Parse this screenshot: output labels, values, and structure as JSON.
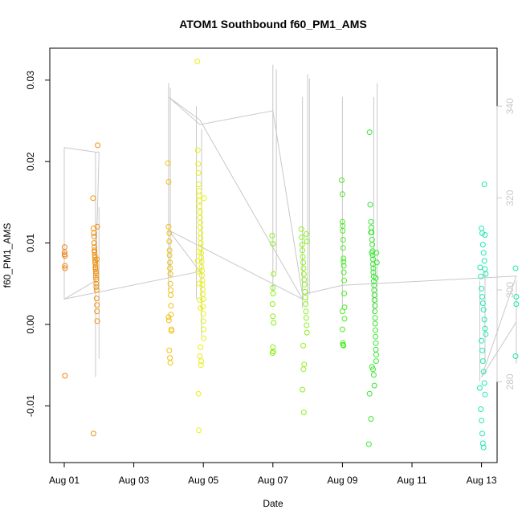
{
  "chart_data": {
    "type": "scatter",
    "title": "ATOM1 Southbound f60_PM1_AMS",
    "xlabel": "Date",
    "ylabel": "f60_PM1_AMS",
    "x_ticks": [
      "Aug 01",
      "Aug 03",
      "Aug 05",
      "Aug 07",
      "Aug 09",
      "Aug 11",
      "Aug 13"
    ],
    "y_ticks": [
      "-0.01",
      "0.00",
      "0.01",
      "0.02",
      "0.03"
    ],
    "y2_ticks": [
      "280",
      "300",
      "320",
      "340"
    ],
    "xlim": [
      "2016-08-01",
      "2016-08-13"
    ],
    "ylim": [
      -0.017,
      0.034
    ],
    "y2lim": [
      263,
      352
    ],
    "grid": false,
    "colors": {
      "points_by_day": [
        "#f08010",
        "#f0c010",
        "#e8f010",
        "#88f010",
        "#30e828",
        "#20e870",
        "#20e8b0"
      ],
      "secondary_line": "#c8c8c8"
    },
    "series": [
      {
        "day": "Aug 01",
        "points": [
          [
            0.01,
            0.0095
          ],
          [
            0.01,
            0.0089
          ],
          [
            0.01,
            0.0086
          ],
          [
            0.02,
            0.0084
          ],
          [
            0.02,
            0.0072
          ],
          [
            0.02,
            0.0069
          ],
          [
            0.02,
            -0.0063
          ]
        ]
      },
      {
        "day": "Aug 02",
        "points": [
          [
            0.83,
            0.0155
          ],
          [
            0.84,
            0.0118
          ],
          [
            0.85,
            0.0112
          ],
          [
            0.86,
            0.0108
          ],
          [
            0.87,
            0.0095
          ],
          [
            0.87,
            0.0089
          ],
          [
            0.88,
            0.0085
          ],
          [
            0.88,
            0.0082
          ],
          [
            0.89,
            0.0079
          ],
          [
            0.89,
            0.0076
          ],
          [
            0.9,
            0.0073
          ],
          [
            0.9,
            0.007
          ],
          [
            0.9,
            0.0068
          ],
          [
            0.91,
            0.0065
          ],
          [
            0.91,
            0.0062
          ],
          [
            0.91,
            0.0058
          ],
          [
            0.92,
            0.0055
          ],
          [
            0.92,
            0.005
          ],
          [
            0.92,
            0.0046
          ],
          [
            0.93,
            0.0042
          ],
          [
            0.93,
            0.0032
          ],
          [
            0.94,
            0.0024
          ],
          [
            0.94,
            0.0016
          ],
          [
            0.95,
            0.0004
          ],
          [
            0.84,
            -0.0134
          ],
          [
            0.96,
            0.022
          ],
          [
            0.95,
            0.012
          ],
          [
            0.86,
            0.01
          ],
          [
            0.87,
            0.0091
          ],
          [
            0.94,
            0.008
          ]
        ]
      },
      {
        "day": "Aug 03",
        "points": [
          [
            2.98,
            0.0198
          ],
          [
            3.0,
            0.0175
          ],
          [
            3.0,
            0.012
          ],
          [
            3.02,
            0.0112
          ],
          [
            3.02,
            0.0102
          ],
          [
            3.03,
            0.0091
          ],
          [
            3.03,
            0.0085
          ],
          [
            3.04,
            0.0076
          ],
          [
            3.04,
            0.0069
          ],
          [
            3.05,
            0.0062
          ],
          [
            3.05,
            0.005
          ],
          [
            3.06,
            0.0042
          ],
          [
            3.06,
            0.0036
          ],
          [
            3.07,
            0.0023
          ],
          [
            3.07,
            0.0012
          ],
          [
            3.08,
            -0.0006
          ],
          [
            3.08,
            -0.0008
          ],
          [
            3.02,
            -0.0032
          ],
          [
            3.04,
            -0.0041
          ],
          [
            3.05,
            -0.0047
          ],
          [
            3.0,
            0.0009
          ],
          [
            3.01,
            0.0005
          ]
        ]
      },
      {
        "day": "Aug 04",
        "points": [
          [
            3.83,
            0.0323
          ],
          [
            3.84,
            0.0214
          ],
          [
            3.85,
            0.0197
          ],
          [
            3.86,
            0.0186
          ],
          [
            3.87,
            0.0172
          ],
          [
            3.88,
            0.0164
          ],
          [
            3.88,
            0.0158
          ],
          [
            3.89,
            0.0152
          ],
          [
            3.89,
            0.0145
          ],
          [
            3.9,
            0.0138
          ],
          [
            3.9,
            0.0131
          ],
          [
            3.91,
            0.0125
          ],
          [
            3.91,
            0.0119
          ],
          [
            3.92,
            0.0112
          ],
          [
            3.92,
            0.0106
          ],
          [
            3.93,
            0.01
          ],
          [
            3.93,
            0.0094
          ],
          [
            3.94,
            0.0088
          ],
          [
            3.94,
            0.0082
          ],
          [
            3.95,
            0.0077
          ],
          [
            3.95,
            0.0071
          ],
          [
            3.96,
            0.0066
          ],
          [
            3.96,
            0.006
          ],
          [
            3.97,
            0.0054
          ],
          [
            3.97,
            0.0049
          ],
          [
            3.98,
            0.0043
          ],
          [
            3.98,
            0.0037
          ],
          [
            3.99,
            0.0031
          ],
          [
            3.99,
            0.0022
          ],
          [
            4.0,
            0.0013
          ],
          [
            4.0,
            0.0004
          ],
          [
            4.01,
            -0.0006
          ],
          [
            4.01,
            -0.0017
          ],
          [
            3.92,
            -0.0028
          ],
          [
            3.9,
            -0.0039
          ],
          [
            3.94,
            -0.0045
          ],
          [
            3.93,
            -0.005
          ],
          [
            3.86,
            -0.0085
          ],
          [
            3.87,
            -0.013
          ],
          [
            4.02,
            0.0155
          ],
          [
            3.86,
            0.0089
          ],
          [
            3.84,
            0.0078
          ],
          [
            3.85,
            0.0065
          ],
          [
            3.88,
            0.005
          ],
          [
            3.9,
            0.003
          ],
          [
            3.92,
            0.002
          ]
        ]
      },
      {
        "day": "Aug 06",
        "points": [
          [
            5.98,
            0.0109
          ],
          [
            6.0,
            0.0099
          ],
          [
            6.02,
            0.0062
          ],
          [
            6.0,
            0.0045
          ],
          [
            6.01,
            0.0038
          ],
          [
            5.99,
            0.0025
          ],
          [
            6.0,
            0.001
          ],
          [
            6.02,
            0.0002
          ],
          [
            6.0,
            -0.0028
          ],
          [
            6.01,
            -0.0033
          ],
          [
            5.99,
            -0.0035
          ]
        ]
      },
      {
        "day": "Aug 07",
        "points": [
          [
            6.82,
            0.0117
          ],
          [
            6.83,
            0.0107
          ],
          [
            6.84,
            0.0098
          ],
          [
            6.85,
            0.0091
          ],
          [
            6.86,
            0.0083
          ],
          [
            6.87,
            0.0076
          ],
          [
            6.88,
            0.0069
          ],
          [
            6.89,
            0.0062
          ],
          [
            6.9,
            0.0055
          ],
          [
            6.91,
            0.0049
          ],
          [
            6.92,
            0.004
          ],
          [
            6.93,
            0.0033
          ],
          [
            6.94,
            0.0025
          ],
          [
            6.95,
            0.0016
          ],
          [
            6.96,
            0.0008
          ],
          [
            6.97,
            -0.0001
          ],
          [
            6.98,
            -0.001
          ],
          [
            6.87,
            -0.0026
          ],
          [
            6.9,
            -0.0049
          ],
          [
            6.88,
            -0.0055
          ],
          [
            6.85,
            -0.008
          ],
          [
            6.89,
            -0.0108
          ],
          [
            6.96,
            0.0111
          ],
          [
            6.98,
            0.0102
          ]
        ]
      },
      {
        "day": "Aug 08",
        "points": [
          [
            7.98,
            0.0177
          ],
          [
            8.0,
            0.016
          ],
          [
            8.0,
            0.0126
          ],
          [
            8.01,
            0.0121
          ],
          [
            8.01,
            0.0115
          ],
          [
            8.02,
            0.0104
          ],
          [
            8.02,
            0.0094
          ],
          [
            8.03,
            0.0081
          ],
          [
            8.03,
            0.0077
          ],
          [
            8.04,
            0.0072
          ],
          [
            8.04,
            0.0064
          ],
          [
            8.05,
            0.0054
          ],
          [
            8.05,
            0.0038
          ],
          [
            8.06,
            0.0021
          ],
          [
            8.06,
            0.0007
          ],
          [
            8.0,
            -0.0006
          ],
          [
            8.01,
            -0.0023
          ],
          [
            8.02,
            -0.0025
          ],
          [
            8.03,
            -0.0026
          ],
          [
            8.0,
            0.0016
          ]
        ]
      },
      {
        "day": "Aug 09",
        "points": [
          [
            8.78,
            0.0236
          ],
          [
            8.8,
            0.0147
          ],
          [
            8.82,
            0.0126
          ],
          [
            8.83,
            0.0119
          ],
          [
            8.84,
            0.0113
          ],
          [
            8.85,
            0.0104
          ],
          [
            8.86,
            0.0098
          ],
          [
            8.87,
            0.009
          ],
          [
            8.87,
            0.0085
          ],
          [
            8.88,
            0.008
          ],
          [
            8.88,
            0.0074
          ],
          [
            8.89,
            0.0069
          ],
          [
            8.89,
            0.0064
          ],
          [
            8.9,
            0.0059
          ],
          [
            8.9,
            0.0053
          ],
          [
            8.91,
            0.0048
          ],
          [
            8.91,
            0.0042
          ],
          [
            8.92,
            0.0036
          ],
          [
            8.92,
            0.003
          ],
          [
            8.93,
            0.0023
          ],
          [
            8.93,
            0.0016
          ],
          [
            8.94,
            0.0008
          ],
          [
            8.94,
            0.0001
          ],
          [
            8.95,
            -0.0007
          ],
          [
            8.95,
            -0.0015
          ],
          [
            8.96,
            -0.0023
          ],
          [
            8.96,
            -0.0031
          ],
          [
            8.97,
            -0.0037
          ],
          [
            8.97,
            -0.0045
          ],
          [
            8.85,
            -0.0052
          ],
          [
            8.88,
            -0.0055
          ],
          [
            8.9,
            -0.0062
          ],
          [
            8.92,
            -0.0075
          ],
          [
            8.78,
            -0.0085
          ],
          [
            8.82,
            -0.0116
          ],
          [
            8.76,
            -0.0147
          ],
          [
            8.98,
            0.0088
          ],
          [
            8.99,
            0.0076
          ],
          [
            8.96,
            0.0057
          ],
          [
            8.82,
            0.0113
          ],
          [
            8.84,
            0.0088
          ]
        ]
      },
      {
        "day": "Aug 12",
        "points": [
          [
            12.08,
            0.0172
          ],
          [
            12.0,
            0.0118
          ],
          [
            12.02,
            0.0112
          ],
          [
            12.04,
            0.0098
          ],
          [
            12.06,
            0.0088
          ],
          [
            12.08,
            0.0078
          ],
          [
            12.1,
            0.0068
          ],
          [
            12.12,
            0.0062
          ],
          [
            11.98,
            0.0059
          ],
          [
            12.0,
            0.0044
          ],
          [
            12.02,
            0.0034
          ],
          [
            12.04,
            0.0026
          ],
          [
            12.06,
            0.0018
          ],
          [
            12.08,
            0.0006
          ],
          [
            12.1,
            -0.0005
          ],
          [
            12.12,
            -0.0012
          ],
          [
            12.0,
            -0.002
          ],
          [
            12.02,
            -0.0032
          ],
          [
            12.04,
            -0.0045
          ],
          [
            12.06,
            -0.0058
          ],
          [
            12.08,
            -0.0072
          ],
          [
            12.1,
            -0.0086
          ],
          [
            11.98,
            -0.0104
          ],
          [
            12.0,
            -0.0118
          ],
          [
            12.02,
            -0.0134
          ],
          [
            12.04,
            -0.0146
          ],
          [
            12.06,
            -0.0151
          ],
          [
            11.95,
            -0.0078
          ],
          [
            11.96,
            0.007
          ],
          [
            12.1,
            0.011
          ]
        ]
      },
      {
        "day": "Aug 13",
        "points": [
          [
            12.98,
            0.0069
          ],
          [
            13.0,
            0.0034
          ],
          [
            13.0,
            0.0025
          ],
          [
            12.98,
            -0.0039
          ]
        ]
      }
    ],
    "secondary_series": {
      "axis": "right",
      "spikes": [
        {
          "x": 0.0,
          "lo": 298,
          "hi": 331
        },
        {
          "x": 0.9,
          "lo": 281,
          "hi": 330
        },
        {
          "x": 1.0,
          "lo": 285,
          "hi": 318
        },
        {
          "x": 3.0,
          "lo": 300,
          "hi": 345
        },
        {
          "x": 3.05,
          "lo": 303,
          "hi": 344
        },
        {
          "x": 3.8,
          "lo": 298,
          "hi": 340
        },
        {
          "x": 3.95,
          "lo": 290,
          "hi": 335
        },
        {
          "x": 6.0,
          "lo": 300,
          "hi": 349
        },
        {
          "x": 6.1,
          "lo": 304,
          "hi": 348
        },
        {
          "x": 6.85,
          "lo": 296,
          "hi": 342
        },
        {
          "x": 7.0,
          "lo": 297,
          "hi": 347
        },
        {
          "x": 7.05,
          "lo": 299,
          "hi": 346
        },
        {
          "x": 8.0,
          "lo": 296,
          "hi": 342
        },
        {
          "x": 8.9,
          "lo": 295,
          "hi": 342
        },
        {
          "x": 9.0,
          "lo": 296,
          "hi": 345
        },
        {
          "x": 11.95,
          "lo": 280,
          "hi": 302
        },
        {
          "x": 12.1,
          "lo": 284,
          "hi": 304
        },
        {
          "x": 13.0,
          "lo": 284,
          "hi": 302
        }
      ],
      "path": [
        [
          0.0,
          331
        ],
        [
          0.9,
          330
        ],
        [
          1.0,
          330
        ],
        [
          0.9,
          302
        ],
        [
          0.0,
          298
        ],
        [
          3.9,
          304
        ],
        [
          3.0,
          313
        ],
        [
          6.85,
          298
        ],
        [
          3.9,
          337
        ],
        [
          3.0,
          342
        ],
        [
          3.9,
          336
        ],
        [
          6.0,
          339
        ],
        [
          6.85,
          299
        ],
        [
          8.0,
          301
        ],
        [
          13.0,
          303
        ],
        [
          12.0,
          281
        ],
        [
          13.0,
          293
        ]
      ]
    }
  }
}
